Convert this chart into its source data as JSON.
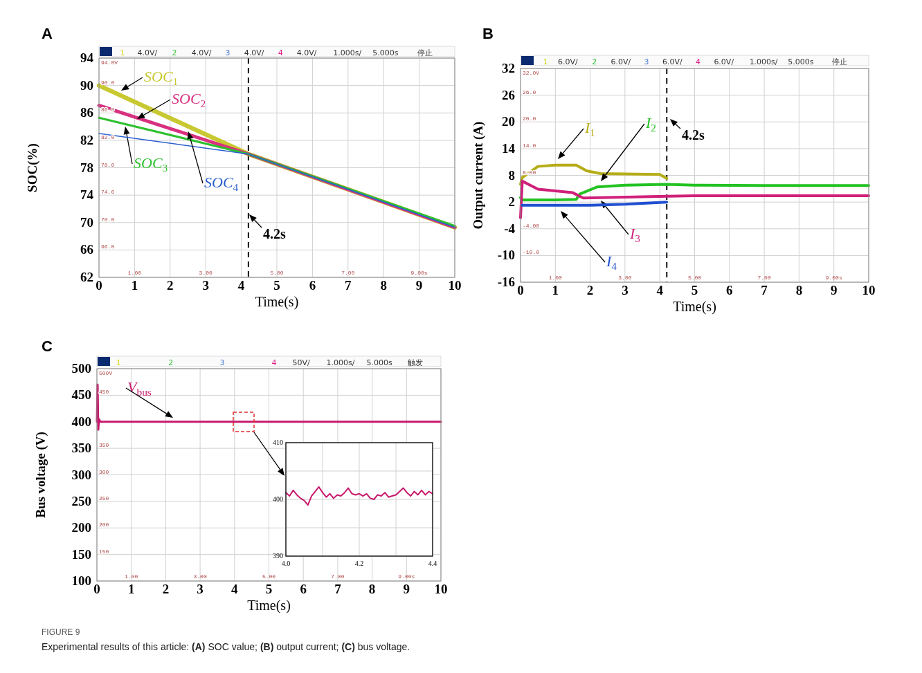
{
  "chart_data": [
    {
      "type": "line",
      "title": "A",
      "xlabel": "Time(s)",
      "ylabel": "SOC(%)",
      "xlim": [
        0,
        10
      ],
      "ylim": [
        62,
        94
      ],
      "xticks": [
        0,
        1,
        2,
        3,
        4,
        5,
        6,
        7,
        8,
        9,
        10
      ],
      "yticks": [
        62,
        66,
        70,
        74,
        78,
        82,
        86,
        90,
        94
      ],
      "grid": true,
      "x": [
        0,
        4.2,
        10
      ],
      "series": [
        {
          "name": "SOC$_{1}$",
          "color": "#c8c832",
          "values": [
            90.0,
            80.0,
            69.3
          ]
        },
        {
          "name": "SOC$_{2}$",
          "color": "#d8307f",
          "values": [
            87.1,
            80.0,
            69.3
          ]
        },
        {
          "name": "SOC$_{3}$",
          "color": "#2ec02e",
          "values": [
            85.3,
            80.0,
            69.5
          ]
        },
        {
          "name": "SOC$_{4}$",
          "color": "#2a5fd0",
          "values": [
            83.0,
            80.0,
            69.3
          ]
        }
      ],
      "ref_lines": [
        {
          "axis": "x",
          "value": 4.2,
          "label": "4.2s",
          "line_style": "dashed"
        }
      ],
      "annotations": [
        "1",
        "4.0V/",
        "2",
        "4.0V/",
        "3",
        "4.0V/",
        "4",
        "4.0V/",
        "1.000s/",
        "5.000s",
        "停止",
        "94.0V",
        "90.0",
        "86.0",
        "82.0",
        "78.0",
        "74.0",
        "70.0",
        "66.0",
        "1.00",
        "3.00",
        "5.00",
        "7.00",
        "9.00s"
      ]
    },
    {
      "type": "line",
      "title": "B",
      "xlabel": "Time(s)",
      "ylabel": "Output current (A)",
      "xlim": [
        0,
        10
      ],
      "ylim": [
        -16,
        32
      ],
      "xticks": [
        0,
        1,
        2,
        3,
        4,
        5,
        6,
        7,
        8,
        9,
        10
      ],
      "yticks": [
        -16,
        -10,
        -4,
        2,
        8,
        14,
        20,
        26,
        32
      ],
      "grid": true,
      "series": [
        {
          "name": "I$_{1}$",
          "color": "#b5ad18",
          "x": [
            0,
            0.05,
            0.5,
            1.0,
            1.6,
            1.9,
            2.3,
            3.0,
            4.0,
            4.2
          ],
          "values": [
            6,
            7.5,
            10,
            10.3,
            10.3,
            9,
            8.4,
            8.3,
            8.2,
            7.3
          ]
        },
        {
          "name": "I$_{2}$",
          "color": "#22c222",
          "x": [
            0,
            0.05,
            1.0,
            1.6,
            1.7,
            2.2,
            3.0,
            4.2,
            5,
            7,
            10
          ],
          "values": [
            3,
            2.5,
            2.5,
            2.6,
            3.8,
            5.4,
            5.8,
            6.0,
            5.8,
            5.7,
            5.7
          ]
        },
        {
          "name": "I$_{3}$",
          "color": "#d0207a",
          "x": [
            0,
            0.05,
            0.5,
            1.0,
            1.5,
            1.8,
            3.0,
            4.2,
            5,
            7,
            10
          ],
          "values": [
            -1.5,
            6.7,
            4.9,
            4.5,
            4.1,
            2.9,
            3.1,
            3.3,
            3.4,
            3.4,
            3.4
          ]
        },
        {
          "name": "I$_{4}$",
          "color": "#2050d0",
          "x": [
            0.05,
            1.0,
            2.0,
            3.0,
            4.0,
            4.2
          ],
          "values": [
            1.3,
            1.3,
            1.3,
            1.5,
            1.9,
            2.0
          ]
        }
      ],
      "ref_lines": [
        {
          "axis": "x",
          "value": 4.2,
          "label": "4.2s",
          "line_style": "dashed"
        }
      ],
      "annotations": [
        "1",
        "6.0V/",
        "2",
        "6.0V/",
        "3",
        "6.0V/",
        "4",
        "6.0V/",
        "1.000s/",
        "5.000s",
        "停止",
        "32.0V",
        "26.0",
        "20.0",
        "14.0",
        "8.00",
        "-4.00",
        "-10.0",
        "1.00",
        "3.00",
        "5.00",
        "7.00",
        "9.00s"
      ]
    },
    {
      "type": "line",
      "title": "C",
      "xlabel": "Time(s)",
      "ylabel": "Bus voltage (V)",
      "xlim": [
        0,
        10
      ],
      "ylim": [
        100,
        500
      ],
      "xticks": [
        0,
        1,
        2,
        3,
        4,
        5,
        6,
        7,
        8,
        9,
        10
      ],
      "yticks": [
        100,
        150,
        200,
        250,
        300,
        350,
        400,
        450,
        500
      ],
      "grid": true,
      "x": [
        0,
        0.02,
        0.04,
        0.06,
        0.1,
        10
      ],
      "series": [
        {
          "name": "V$_{bus}$",
          "color": "#c8186c",
          "values": [
            400,
            470,
            385,
            405,
            400,
            400
          ]
        }
      ],
      "annotations": [
        "1",
        "2",
        "3",
        "4",
        "50V/",
        "1.000s/",
        "5.000s",
        "触发",
        "500V",
        "450",
        "350",
        "300",
        "250",
        "200",
        "150",
        "1.00",
        "3.00",
        "5.00",
        "7.00",
        "9.00s",
        "FIGURE 9",
        "Experimental results of this article: **(A)** SOC value; **(B)** output current; **(C)** bus voltage."
      ]
    },
    {
      "type": "line",
      "xlim": [
        4.0,
        4.4
      ],
      "ylim": [
        390,
        410
      ],
      "xticks": [
        {
          "value": 4.0,
          "label": "4.0"
        },
        {
          "value": 4.1,
          "label": null
        },
        {
          "value": 4.2,
          "label": "4.2"
        },
        {
          "value": 4.3,
          "label": null
        },
        {
          "value": 4.4,
          "label": "4.4"
        }
      ],
      "yticks": [
        390,
        {
          "value": 395,
          "label": null
        },
        400,
        {
          "value": 405,
          "label": null
        },
        410
      ],
      "grid": true,
      "x": [
        4.0,
        4.01,
        4.02,
        4.03,
        4.04,
        4.05,
        4.06,
        4.07,
        4.08,
        4.09,
        4.1,
        4.11,
        4.12,
        4.13,
        4.14,
        4.15,
        4.16,
        4.17,
        4.18,
        4.19,
        4.2,
        4.21,
        4.22,
        4.23,
        4.24,
        4.25,
        4.26,
        4.27,
        4.28,
        4.29,
        4.3,
        4.31,
        4.32,
        4.33,
        4.34,
        4.35,
        4.36,
        4.37,
        4.38,
        4.39,
        4.4
      ],
      "series": [
        {
          "color": "#c8186c",
          "values": [
            401.2,
            400.6,
            401.6,
            400.8,
            400.2,
            399.8,
            399.0,
            400.6,
            401.4,
            402.2,
            401.2,
            400.4,
            401.0,
            400.2,
            400.8,
            400.6,
            401.2,
            402.0,
            401.0,
            400.8,
            401.0,
            400.6,
            401.0,
            400.2,
            400.0,
            400.8,
            400.6,
            401.2,
            400.4,
            400.6,
            400.8,
            401.4,
            402.0,
            401.2,
            400.6,
            401.4,
            400.8,
            401.6,
            400.8,
            401.4,
            401.0
          ]
        }
      ]
    }
  ]
}
